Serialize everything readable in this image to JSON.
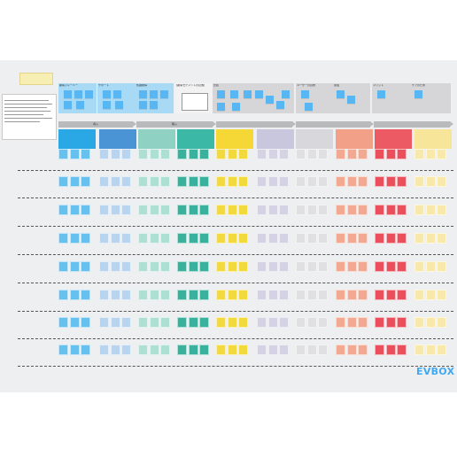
{
  "brand": {
    "logo_text": "EVBOX",
    "logo_color": "#3fa9f5"
  },
  "note_card": {
    "text": ""
  },
  "top_cards": [
    {
      "label": "顧客ジャーニー",
      "color": "#a8daf5"
    },
    {
      "label": "サポート",
      "color": "#a8daf5"
    },
    {
      "label": "知識獲得",
      "color": "#a8daf5"
    },
    {
      "label": "[顧客セグメントの定義]",
      "color": "#f2f2f2"
    },
    {
      "label": "比較",
      "color": "#d6d6d8"
    },
    {
      "label": "",
      "color": "#d6d6d8"
    },
    {
      "label": "ユーザーの目的",
      "color": "#d6d6d8"
    },
    {
      "label": "充電",
      "color": "#d6d6d8"
    },
    {
      "label": "メリット",
      "color": "#d6d6d8"
    },
    {
      "label": "ケアのため",
      "color": "#d6d6d8"
    }
  ],
  "phases": [
    {
      "label": "導入"
    },
    {
      "label": "購入"
    },
    {
      "label": ""
    },
    {
      "label": ""
    },
    {
      "label": ""
    }
  ],
  "columns": [
    {
      "color": "#2aa8e6",
      "soft": "#66c1ef"
    },
    {
      "color": "#4a94d6",
      "soft": "#b8d4ee"
    },
    {
      "color": "#8fd1c2",
      "soft": "#aedfd3"
    },
    {
      "color": "#3bb9a6",
      "soft": "#3ab19d"
    },
    {
      "color": "#f5d835",
      "soft": "#f2d93d"
    },
    {
      "color": "#c9c7dd",
      "soft": "#d5d3e3"
    },
    {
      "color": "#d8d8dc",
      "soft": "#e0e0e3"
    },
    {
      "color": "#f2a087",
      "soft": "#f3a891"
    },
    {
      "color": "#ec5b64",
      "soft": "#ec4f5c"
    },
    {
      "color": "#f7e59a",
      "soft": "#f8e9ab"
    }
  ],
  "rows": [
    {
      "label": ""
    },
    {
      "label": ""
    },
    {
      "label": ""
    },
    {
      "label": ""
    },
    {
      "label": ""
    },
    {
      "label": ""
    },
    {
      "label": ""
    },
    {
      "label": ""
    }
  ]
}
